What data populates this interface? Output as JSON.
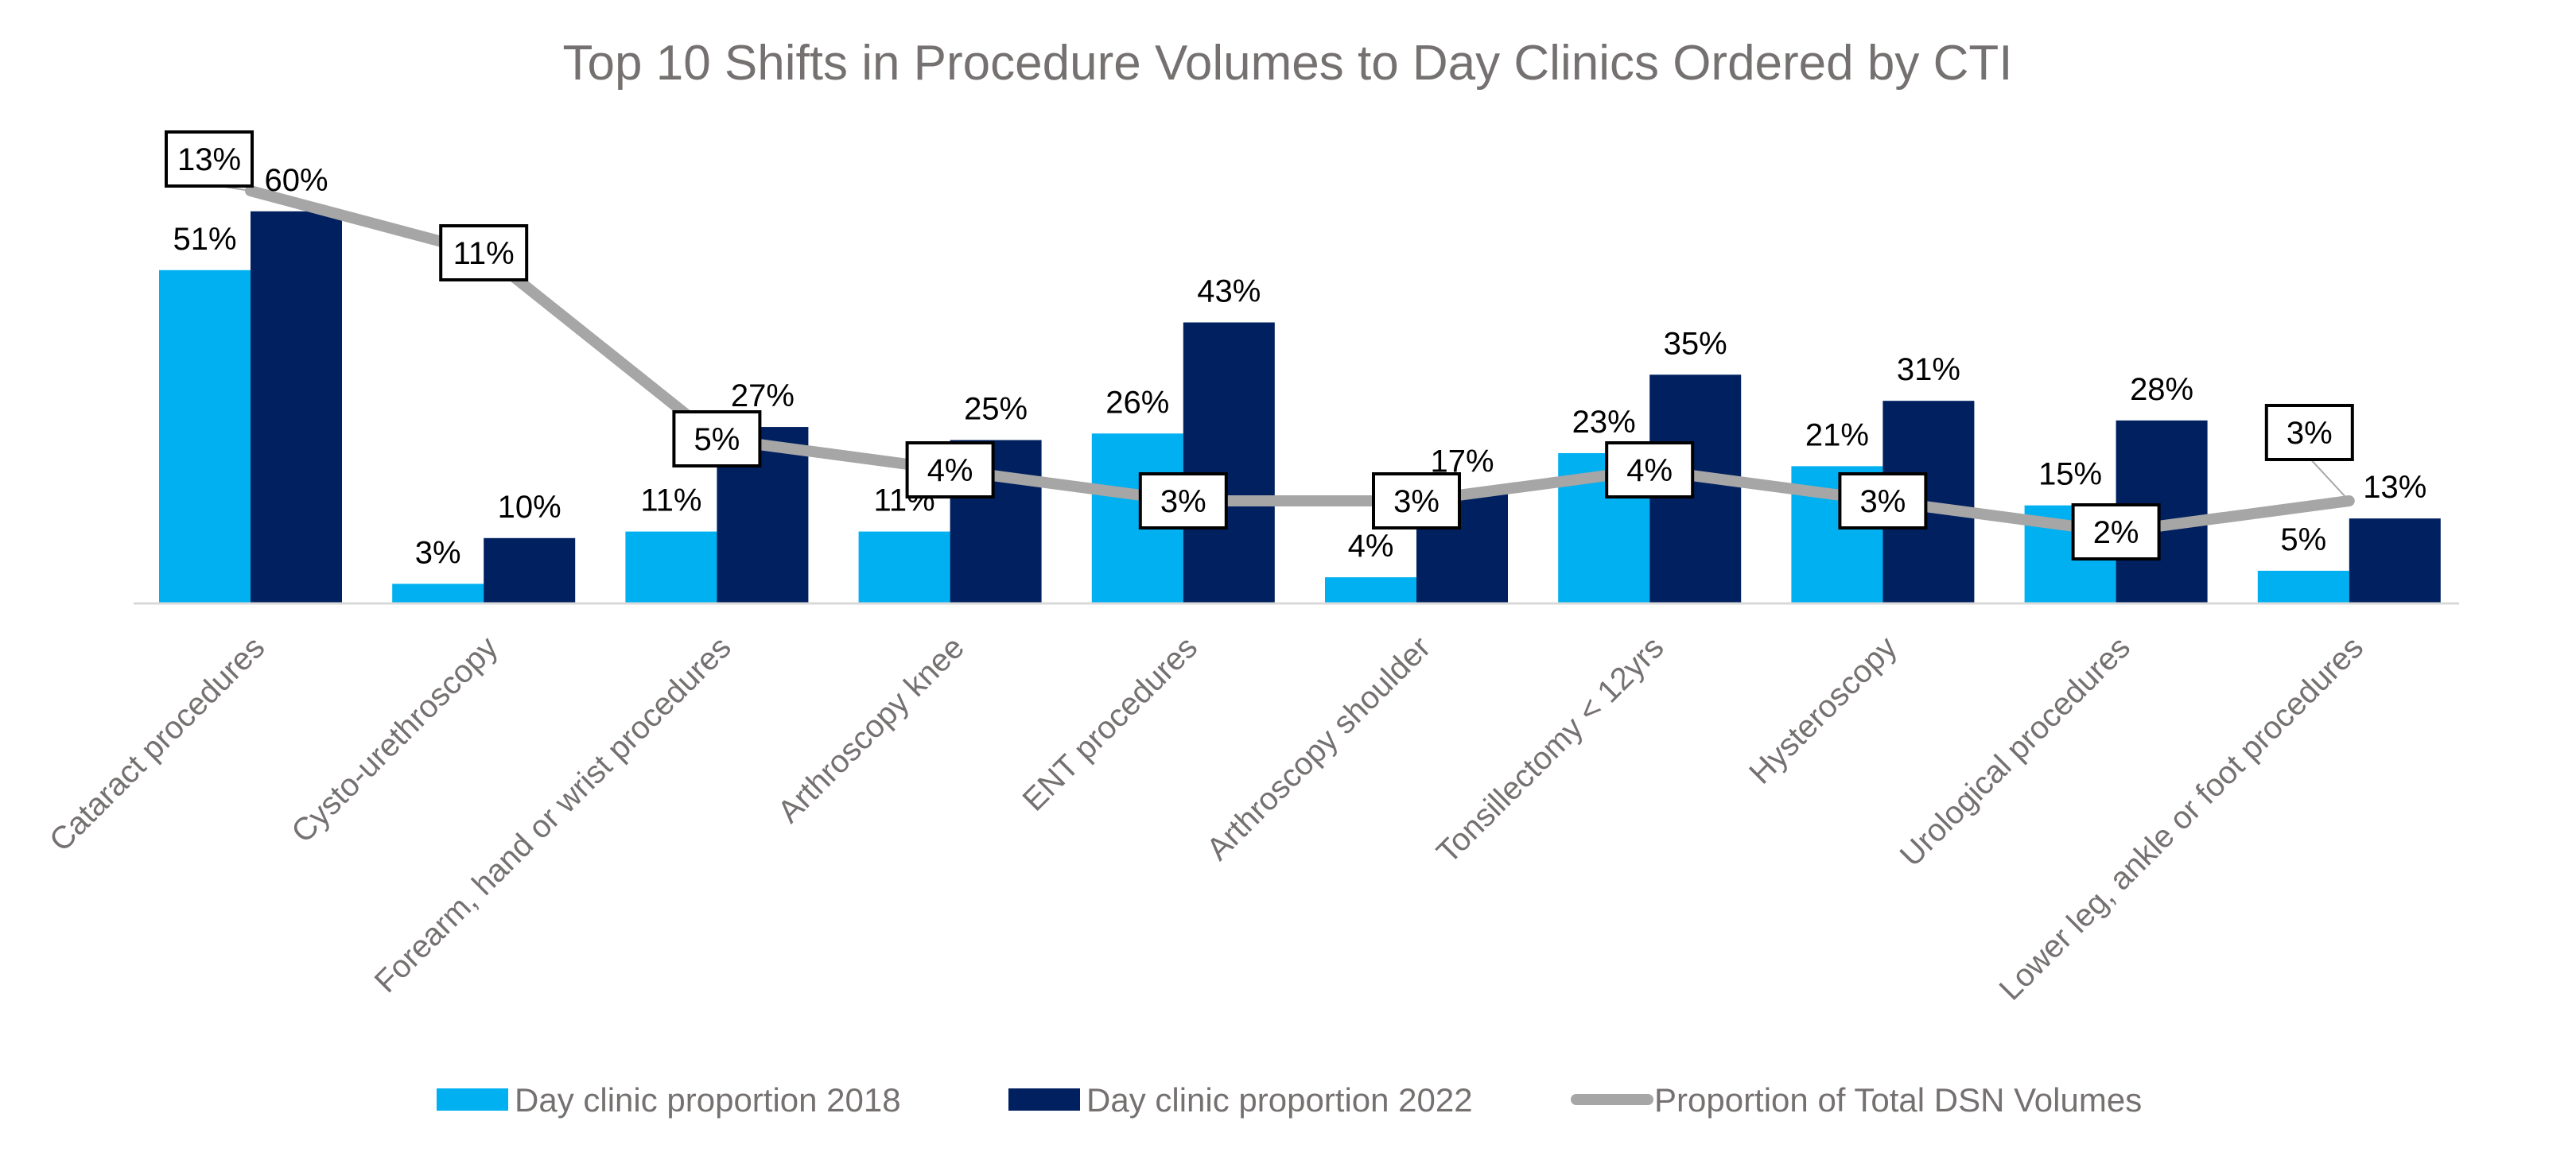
{
  "chart_data": {
    "type": "bar",
    "title": "Top 10 Shifts in Procedure Volumes to Day Clinics Ordered by CTI",
    "categories": [
      "Cataract procedures",
      "Cysto-urethroscopy",
      "Forearm, hand or wrist procedures",
      "Arthroscopy knee",
      "ENT procedures",
      "Arthroscopy shoulder",
      "Tonsillectomy < 12yrs",
      "Hysteroscopy",
      "Urological procedures",
      "Lower leg, ankle or foot procedures"
    ],
    "series": [
      {
        "name": "Day clinic proportion 2018",
        "type": "bar",
        "color": "#00B0F0",
        "values": [
          51,
          3,
          11,
          11,
          26,
          4,
          23,
          21,
          15,
          5
        ],
        "labels": [
          "51%",
          "3%",
          "11%",
          "11%",
          "26%",
          "4%",
          "23%",
          "21%",
          "15%",
          "5%"
        ]
      },
      {
        "name": "Day clinic proportion 2022",
        "type": "bar",
        "color": "#002060",
        "values": [
          60,
          10,
          27,
          25,
          43,
          17,
          35,
          31,
          28,
          13
        ],
        "labels": [
          "60%",
          "10%",
          "27%",
          "25%",
          "43%",
          "17%",
          "35%",
          "31%",
          "28%",
          "13%"
        ]
      },
      {
        "name": "Proportion of Total DSN Volumes",
        "type": "line",
        "color": "#A6A6A6",
        "values": [
          13,
          11,
          5,
          4,
          3,
          3,
          4,
          3,
          2,
          3
        ],
        "labels": [
          "13%",
          "11%",
          "5%",
          "4%",
          "3%",
          "3%",
          "4%",
          "3%",
          "2%",
          "3%"
        ]
      }
    ],
    "ylim_bars": [
      0,
      62
    ],
    "grid": false,
    "legend_position": "bottom"
  }
}
